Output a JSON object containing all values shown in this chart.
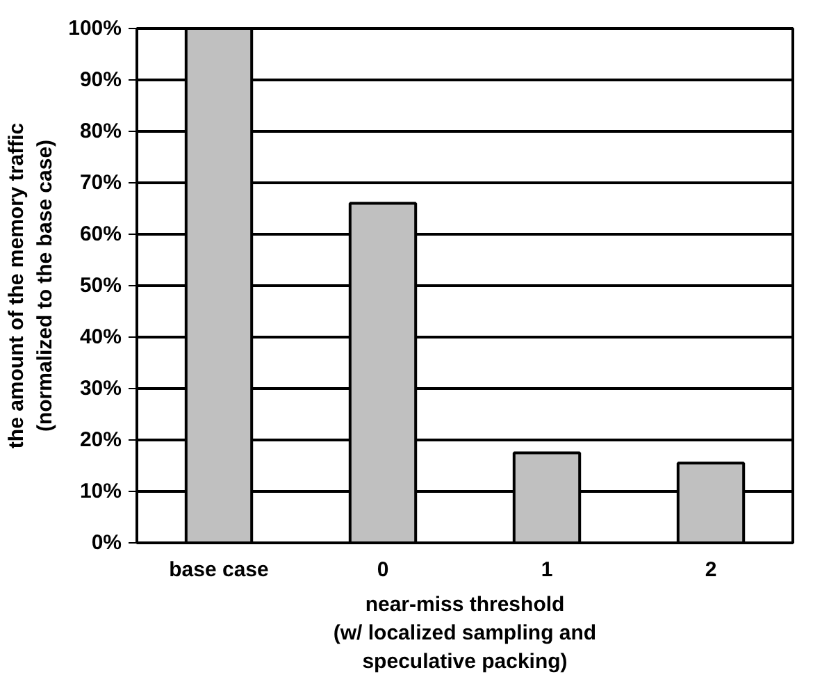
{
  "chart_data": {
    "type": "bar",
    "categories": [
      "base case",
      "0",
      "1",
      "2"
    ],
    "values": [
      100,
      66,
      17.5,
      15.5
    ],
    "color": "#c0c0c0",
    "ylabel": "the amount of the memory traffic\n(normalized to the base case)",
    "xlabel": "near-miss threshold\n(w/ localized sampling and\nspeculative packing)",
    "ylim": [
      0,
      100
    ],
    "yticks": [
      {
        "value": 0,
        "label": "0%"
      },
      {
        "value": 10,
        "label": "10%"
      },
      {
        "value": 20,
        "label": "20%"
      },
      {
        "value": 30,
        "label": "30%"
      },
      {
        "value": 40,
        "label": "40%"
      },
      {
        "value": 50,
        "label": "50%"
      },
      {
        "value": 60,
        "label": "60%"
      },
      {
        "value": 70,
        "label": "70%"
      },
      {
        "value": 80,
        "label": "80%"
      },
      {
        "value": 90,
        "label": "90%"
      },
      {
        "value": 100,
        "label": "100%"
      }
    ],
    "grid": "y"
  }
}
